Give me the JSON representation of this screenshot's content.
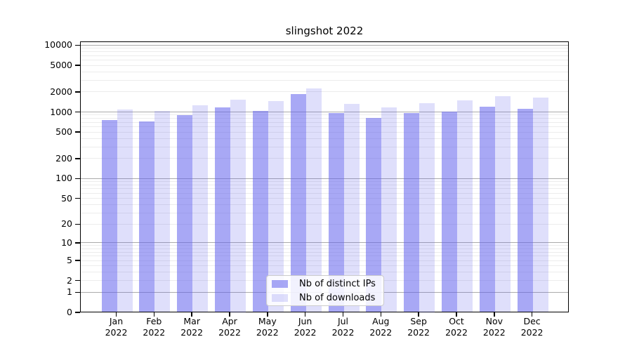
{
  "title": "slingshot 2022",
  "chart_data": {
    "type": "bar",
    "title": "slingshot 2022",
    "categories": [
      "Jan",
      "Feb",
      "Mar",
      "Apr",
      "May",
      "Jun",
      "Jul",
      "Aug",
      "Sep",
      "Oct",
      "Nov",
      "Dec"
    ],
    "year": "2022",
    "series": [
      {
        "name": "Nb of distinct IPs",
        "color": "rgba(97,97,237,0.55)",
        "values": [
          745,
          710,
          880,
          1150,
          1020,
          1820,
          950,
          800,
          950,
          1010,
          1180,
          1100
        ]
      },
      {
        "name": "Nb of downloads",
        "color": "rgba(97,97,237,0.20)",
        "values": [
          1070,
          1020,
          1240,
          1530,
          1430,
          2250,
          1300,
          1150,
          1340,
          1460,
          1690,
          1620
        ]
      }
    ],
    "y_axis": {
      "scale": "symlog",
      "ticks": [
        0,
        1,
        2,
        5,
        10,
        20,
        50,
        100,
        200,
        500,
        1000,
        2000,
        5000,
        10000
      ],
      "max": 11000,
      "major_gridlines": [
        1,
        10,
        100,
        1000,
        10000
      ],
      "grid": true
    },
    "legend_position": "bottom-center"
  }
}
